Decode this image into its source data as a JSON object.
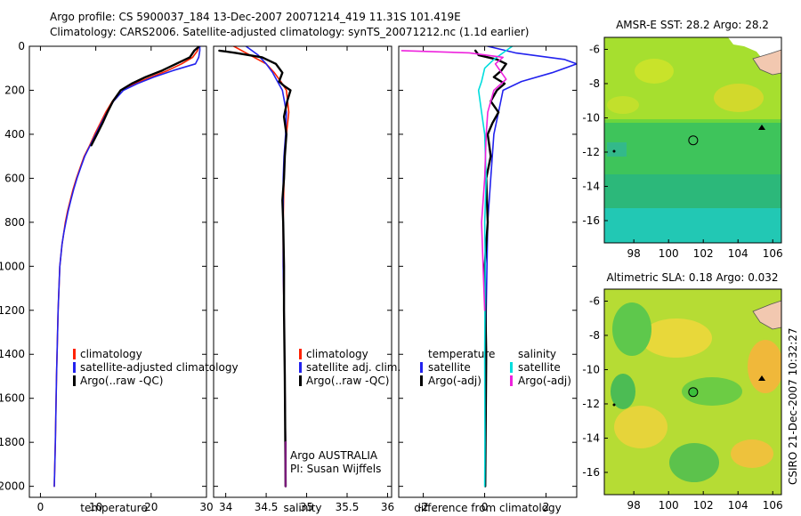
{
  "header": {
    "line1": "Argo profile: CS 5900037_184 13-Dec-2007 20071214_419 11.31S 101.419E",
    "line2": "Climatology: CARS2006. Satellite-adjusted climatology: synTS_20071212.nc (1.1d earlier)"
  },
  "side_label": "CSIRO 21-Dec-2007 10:32:27",
  "colors": {
    "climatology": "#ff2200",
    "satellite": "#2222ee",
    "argo": "#000000",
    "salinity_satellite": "#00dddd",
    "salinity_argo": "#ee22dd",
    "purple": "#7a1a7a"
  },
  "chart_data": [
    {
      "type": "line",
      "id": "temperature",
      "xlabel": "temperature",
      "ylabel": "",
      "xlim": [
        -2,
        30
      ],
      "ylim": [
        2050,
        0
      ],
      "xticks": [
        0,
        10,
        20,
        30
      ],
      "yticks": [
        0,
        200,
        400,
        600,
        800,
        1000,
        1200,
        1400,
        1600,
        1800,
        2000
      ],
      "legend": [
        "climatology",
        "satellite-adjusted climatology",
        "Argo(..raw -QC)"
      ],
      "series": [
        {
          "name": "climatology",
          "color_key": "climatology",
          "x": [
            28.6,
            28.4,
            27.5,
            25.5,
            23.0,
            20.0,
            17.0,
            14.5,
            13.0,
            11.8,
            10.8,
            9.8,
            8.9,
            7.9,
            7.2,
            6.5,
            5.9,
            5.4,
            4.9,
            4.5,
            4.2,
            3.9,
            3.5,
            3.2,
            2.9,
            2.7,
            2.5
          ],
          "y": [
            0,
            20,
            50,
            80,
            110,
            140,
            170,
            200,
            250,
            300,
            350,
            400,
            450,
            500,
            550,
            600,
            650,
            700,
            750,
            800,
            850,
            900,
            1000,
            1200,
            1500,
            1800,
            2000
          ]
        },
        {
          "name": "satellite-adjusted climatology",
          "color_key": "satellite",
          "x": [
            28.8,
            28.8,
            28.6,
            28.0,
            24.0,
            20.5,
            17.5,
            15.0,
            13.2,
            12.0,
            11.0,
            10.0,
            9.0,
            8.0,
            7.3,
            6.6,
            6.0,
            5.5,
            5.0,
            4.6,
            4.2,
            3.9,
            3.5,
            3.2,
            2.9,
            2.7,
            2.5
          ],
          "y": [
            0,
            20,
            50,
            80,
            110,
            140,
            170,
            200,
            250,
            300,
            350,
            400,
            450,
            500,
            550,
            600,
            650,
            700,
            750,
            800,
            850,
            900,
            1000,
            1200,
            1500,
            1800,
            2000
          ]
        },
        {
          "name": "Argo(..raw -QC)",
          "color_key": "argo",
          "x": [
            28.5,
            27.8,
            27.0,
            24.5,
            22.0,
            19.0,
            16.5,
            14.5,
            13.1,
            12.1,
            11.2,
            10.2,
            9.2
          ],
          "y": [
            5,
            20,
            50,
            80,
            110,
            140,
            170,
            200,
            250,
            300,
            350,
            400,
            450
          ]
        }
      ]
    },
    {
      "type": "line",
      "id": "salinity",
      "xlabel": "salinity",
      "ylabel": "",
      "xlim": [
        33.85,
        36.05
      ],
      "ylim": [
        2050,
        0
      ],
      "xticks": [
        34,
        34.5,
        35,
        35.5,
        36
      ],
      "yticks": [
        0,
        200,
        400,
        600,
        800,
        1000,
        1200,
        1400,
        1600,
        1800,
        2000
      ],
      "legend": [
        "climatology",
        "satellite adj. clim.",
        "Argo(..raw -QC)"
      ],
      "annotations": [
        "Argo AUSTRALIA",
        "PI: Susan Wijffels"
      ],
      "series": [
        {
          "name": "climatology",
          "color_key": "climatology",
          "x": [
            34.1,
            34.3,
            34.5,
            34.6,
            34.68,
            34.75,
            34.78,
            34.75,
            34.73,
            34.72,
            34.71,
            34.71,
            34.72,
            34.73,
            34.74,
            34.74
          ],
          "y": [
            0,
            40,
            80,
            120,
            160,
            200,
            300,
            400,
            500,
            600,
            800,
            1000,
            1200,
            1500,
            1800,
            2000
          ]
        },
        {
          "name": "satellite adj. clim.",
          "color_key": "satellite",
          "x": [
            34.25,
            34.4,
            34.5,
            34.58,
            34.64,
            34.7,
            34.75,
            34.74,
            34.72,
            34.71,
            34.71,
            34.71,
            34.72,
            34.73,
            34.74,
            34.74
          ],
          "y": [
            0,
            40,
            80,
            120,
            160,
            200,
            300,
            400,
            500,
            600,
            800,
            1000,
            1200,
            1500,
            1800,
            2000
          ]
        },
        {
          "name": "Argo(..raw -QC)",
          "color_key": "argo",
          "x": [
            33.92,
            34.12,
            34.45,
            34.62,
            34.7,
            34.66,
            34.72,
            34.8,
            34.76,
            34.72,
            34.75,
            34.73,
            34.72,
            34.7,
            34.71,
            34.72,
            34.72,
            34.73,
            34.74
          ],
          "y": [
            20,
            30,
            50,
            80,
            120,
            160,
            180,
            200,
            250,
            320,
            400,
            500,
            600,
            700,
            800,
            1000,
            1200,
            1500,
            2000
          ]
        },
        {
          "name": "Argo deep",
          "color_key": "purple",
          "x": [
            34.74,
            34.74
          ],
          "y": [
            1800,
            2000
          ]
        }
      ]
    },
    {
      "type": "line",
      "id": "difference",
      "xlabel": "difference from climatology",
      "ylabel": "",
      "xlim": [
        -2.8,
        3.0
      ],
      "ylim": [
        2050,
        0
      ],
      "xticks": [
        -2,
        0,
        2
      ],
      "yticks": [
        0,
        200,
        400,
        600,
        800,
        1000,
        1200,
        1400,
        1600,
        1800,
        2000
      ],
      "legend_temperature": {
        "header": "temperature",
        "items": [
          "satellite",
          "Argo(-adj)"
        ]
      },
      "legend_salinity": {
        "header": "salinity",
        "items": [
          "satellite",
          "Argo(-adj)"
        ]
      },
      "series": [
        {
          "name": "temperature satellite",
          "color_key": "satellite",
          "x": [
            0.1,
            1.0,
            2.6,
            3.0,
            2.2,
            1.2,
            0.6,
            0.45,
            0.3,
            0.2,
            0.1,
            0.05,
            0.02,
            0.02
          ],
          "y": [
            0,
            30,
            60,
            80,
            120,
            160,
            200,
            300,
            400,
            600,
            800,
            1200,
            1600,
            2000
          ]
        },
        {
          "name": "temperature Argo(-adj)",
          "color_key": "argo",
          "x": [
            -0.3,
            -0.2,
            0.4,
            0.7,
            0.55,
            0.3,
            0.65,
            0.4,
            0.2,
            0.45,
            0.25,
            0.1,
            0.2,
            0.05,
            0.1,
            0.0,
            0.05,
            0.02
          ],
          "y": [
            20,
            40,
            60,
            80,
            110,
            140,
            170,
            200,
            250,
            300,
            350,
            400,
            500,
            600,
            800,
            1000,
            1400,
            2000
          ]
        },
        {
          "name": "salinity satellite",
          "color_key": "salinity_satellite",
          "x": [
            0.9,
            0.6,
            0.3,
            0.0,
            -0.1,
            -0.2,
            -0.1,
            0.0,
            0.05,
            0.0,
            0.02,
            0.0,
            0.01,
            0.0
          ],
          "y": [
            0,
            30,
            60,
            100,
            160,
            200,
            300,
            400,
            600,
            800,
            1000,
            1400,
            1800,
            2000
          ]
        },
        {
          "name": "salinity Argo(-adj)",
          "color_key": "salinity_argo",
          "x": [
            -2.7,
            -0.5,
            0.6,
            0.35,
            0.7,
            0.3,
            0.1,
            0.05,
            0.0,
            -0.1,
            -0.05,
            0.0
          ],
          "y": [
            20,
            30,
            50,
            80,
            150,
            200,
            300,
            400,
            600,
            800,
            1000,
            1200
          ]
        }
      ]
    },
    {
      "type": "heatmap",
      "id": "sst-map",
      "title": "AMSR-E SST: 28.2 Argo: 28.2",
      "xlim": [
        96.3,
        106.5
      ],
      "ylim": [
        -17.3,
        -5.3
      ],
      "xticks": [
        98,
        100,
        102,
        104,
        106
      ],
      "yticks": [
        -6,
        -8,
        -10,
        -12,
        -14,
        -16
      ],
      "argo_position": {
        "lon": 101.419,
        "lat": -11.31
      }
    },
    {
      "type": "heatmap",
      "id": "sla-map",
      "title": "Altimetric SLA: 0.18 Argo: 0.032",
      "xlim": [
        96.3,
        106.5
      ],
      "ylim": [
        -17.3,
        -5.3
      ],
      "xticks": [
        98,
        100,
        102,
        104,
        106
      ],
      "yticks": [
        -6,
        -8,
        -10,
        -12,
        -14,
        -16
      ],
      "argo_position": {
        "lon": 101.419,
        "lat": -11.31
      }
    }
  ]
}
